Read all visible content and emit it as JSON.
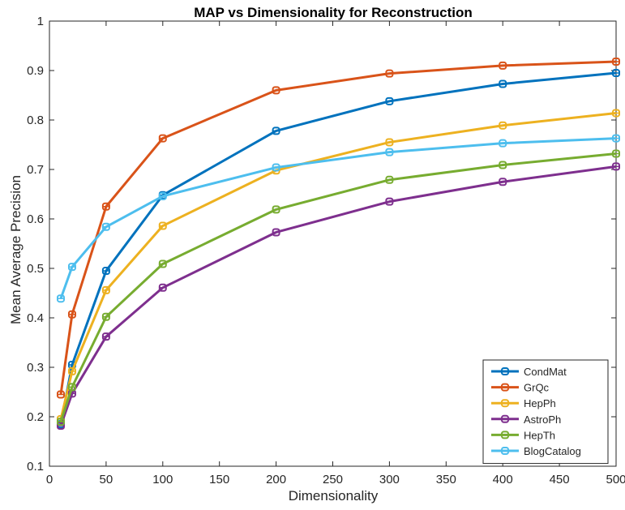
{
  "chart_data": {
    "type": "line",
    "title": "MAP vs Dimensionality for Reconstruction",
    "xlabel": "Dimensionality",
    "ylabel": "Mean Average Precision",
    "xlim": [
      0,
      500
    ],
    "ylim": [
      0.1,
      1
    ],
    "xticks": [
      0,
      50,
      100,
      150,
      200,
      250,
      300,
      350,
      400,
      450,
      500
    ],
    "yticks": [
      0.1,
      0.2,
      0.3,
      0.4,
      0.5,
      0.6,
      0.7,
      0.8,
      0.9,
      1
    ],
    "grid": false,
    "legend_position": "bottom-right",
    "x": [
      10,
      20,
      50,
      100,
      200,
      300,
      400,
      500
    ],
    "series": [
      {
        "name": "CondMat",
        "color": "#0072BD",
        "values": [
          0.185,
          0.305,
          0.495,
          0.648,
          0.778,
          0.838,
          0.873,
          0.895
        ]
      },
      {
        "name": "GrQc",
        "color": "#D95319",
        "values": [
          0.245,
          0.407,
          0.625,
          0.763,
          0.86,
          0.894,
          0.91,
          0.918
        ]
      },
      {
        "name": "HepPh",
        "color": "#EDB120",
        "values": [
          0.195,
          0.292,
          0.456,
          0.586,
          0.698,
          0.755,
          0.789,
          0.814
        ]
      },
      {
        "name": "AstroPh",
        "color": "#7E2F8E",
        "values": [
          0.182,
          0.247,
          0.362,
          0.461,
          0.573,
          0.635,
          0.675,
          0.706
        ]
      },
      {
        "name": "HepTh",
        "color": "#77AC30",
        "values": [
          0.19,
          0.26,
          0.402,
          0.509,
          0.619,
          0.679,
          0.709,
          0.732
        ]
      },
      {
        "name": "BlogCatalog",
        "color": "#4DBEEE",
        "values": [
          0.439,
          0.503,
          0.584,
          0.646,
          0.704,
          0.735,
          0.753,
          0.763
        ]
      }
    ]
  }
}
